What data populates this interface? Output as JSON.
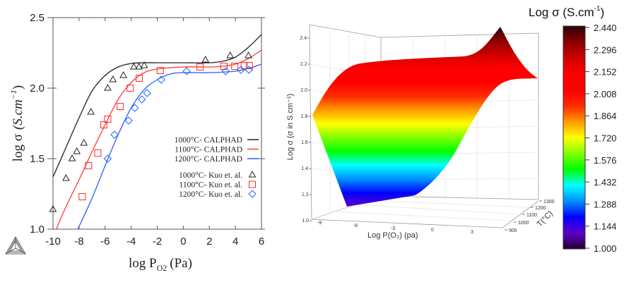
{
  "chart_data": [
    {
      "type": "line",
      "xlabel": "log P",
      "xlabel_sub": "O2",
      "xlabel_unit": "(Pa)",
      "ylabel": "log σ",
      "ylabel_unit": "(S.cm",
      "ylabel_exp": "−1",
      "xlim": [
        -10,
        6
      ],
      "ylim": [
        1.0,
        2.5
      ],
      "xticks": [
        "-10",
        "-8",
        "-6",
        "-4",
        "-2",
        "0",
        "2",
        "4",
        "6"
      ],
      "yticks": [
        "1.0",
        "1.5",
        "2.0",
        "2.5"
      ],
      "grid": false,
      "legend_position": "center-right",
      "series": [
        {
          "name": "1000°C- CALPHAD",
          "kind": "line",
          "color": "#222222",
          "x": [
            -10,
            -9,
            -8,
            -7,
            -6,
            -5,
            -4,
            -3,
            -2,
            0,
            2,
            3,
            4,
            5,
            6
          ],
          "y": [
            1.37,
            1.58,
            1.79,
            1.98,
            2.09,
            2.15,
            2.175,
            2.18,
            2.18,
            2.18,
            2.18,
            2.19,
            2.22,
            2.29,
            2.38
          ]
        },
        {
          "name": "1100°C- CALPHAD",
          "kind": "line",
          "color": "#ff3b3b",
          "x": [
            -9.75,
            -9,
            -8,
            -7,
            -6,
            -5,
            -4,
            -3,
            -2,
            0,
            2,
            3,
            4,
            5,
            6
          ],
          "y": [
            1.0,
            1.16,
            1.35,
            1.55,
            1.74,
            1.92,
            2.04,
            2.11,
            2.135,
            2.15,
            2.15,
            2.155,
            2.17,
            2.21,
            2.27
          ]
        },
        {
          "name": "1200°C- CALPHAD",
          "kind": "line",
          "color": "#2f5bff",
          "x": [
            -8.1,
            -7,
            -6,
            -5,
            -4,
            -3,
            -2,
            -1,
            0,
            2,
            4,
            5,
            6
          ],
          "y": [
            1.0,
            1.22,
            1.45,
            1.67,
            1.86,
            1.99,
            2.06,
            2.1,
            2.11,
            2.11,
            2.12,
            2.14,
            2.17
          ]
        },
        {
          "name": "1000°C- Kuo et. al.",
          "kind": "scatter",
          "marker": "triangle",
          "color": "#222222",
          "x": [
            -10,
            -9,
            -8.53,
            -8.17,
            -7.63,
            -7.09,
            -5.8,
            -5.4,
            -4.6,
            -3.8,
            -3.4,
            -3.0,
            1.7,
            3.6,
            5.0
          ],
          "y": [
            1.14,
            1.36,
            1.5,
            1.55,
            1.61,
            1.83,
            2.0,
            2.06,
            2.09,
            2.15,
            2.15,
            2.16,
            2.2,
            2.23,
            2.23
          ]
        },
        {
          "name": "1100°C- Kuo et. al.",
          "kind": "scatter",
          "marker": "square",
          "color": "#ff2a2a",
          "x": [
            -7.76,
            -7.27,
            -6.56,
            -6.1,
            -5.8,
            -4.84,
            -4.08,
            -3.38,
            -1.77,
            1.29,
            3.12,
            3.95,
            4.68,
            5.07
          ],
          "y": [
            1.23,
            1.45,
            1.54,
            1.74,
            1.78,
            1.87,
            2.0,
            2.07,
            2.125,
            2.15,
            2.155,
            2.155,
            2.16,
            2.16
          ]
        },
        {
          "name": "1200°C- Kuo et. al.",
          "kind": "scatter",
          "marker": "diamond",
          "color": "#1a6bff",
          "x": [
            -5.8,
            -5.28,
            -4.2,
            -3.72,
            -3.18,
            -2.78,
            -1.69,
            0.26,
            3.25,
            4.42,
            5.04
          ],
          "y": [
            1.5,
            1.67,
            1.77,
            1.86,
            1.92,
            1.965,
            2.06,
            2.12,
            2.12,
            2.13,
            2.13
          ]
        }
      ]
    },
    {
      "type": "surface",
      "xlabel": "Log P(O₂) (pa)",
      "ylabel": "T(°C)",
      "zlabel": "Log σ (σ in S.cm⁻¹)",
      "xticks": [
        "-9",
        "-6",
        "-3",
        "0",
        "3"
      ],
      "yticks": [
        "900",
        "1000",
        "1100",
        "1200",
        "1300"
      ],
      "zticks": [
        "1.0",
        "1.2",
        "1.4",
        "1.6",
        "1.8",
        "2.0",
        "2.2",
        "2.4"
      ],
      "zlim": [
        1.0,
        2.44
      ],
      "colorbar": {
        "title": "Log σ (S.cm",
        "title_exp": "-1",
        "title_close": ")",
        "ticks": [
          "2.440",
          "2.296",
          "2.152",
          "2.008",
          "1.864",
          "1.720",
          "1.576",
          "1.432",
          "1.288",
          "1.144",
          "1.000"
        ],
        "colormap": [
          "#2a0008",
          "#8b0000",
          "#d00000",
          "#ff0000",
          "#ff0000",
          "#ff2a00",
          "#ff9900",
          "#ffff00",
          "#80ff00",
          "#00ff00",
          "#00ffff",
          "#0090ff",
          "#0000ff",
          "#6000c8",
          "#200030"
        ]
      }
    }
  ]
}
